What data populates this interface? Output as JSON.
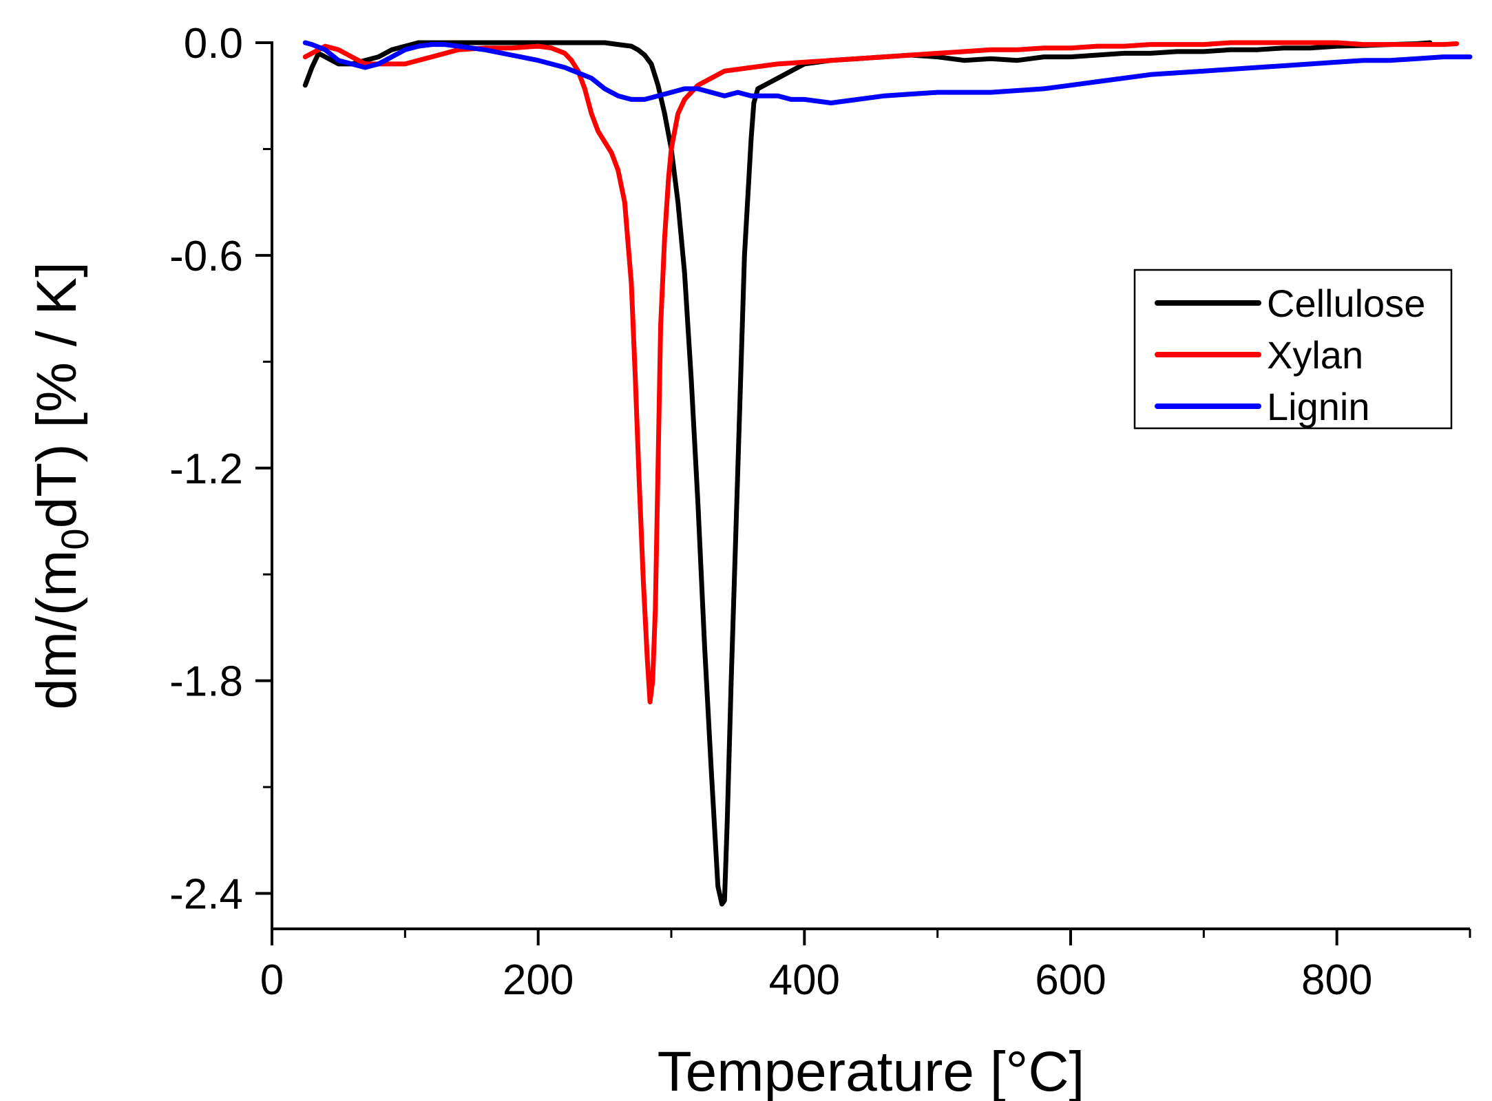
{
  "chart_data": {
    "type": "line",
    "title": "",
    "xlabel": "Temperature [°C]",
    "ylabel_main": "dm/(m",
    "ylabel_sub": "0",
    "ylabel_tail": "dT) [% / K]",
    "xlim": [
      0,
      900
    ],
    "ylim": [
      -2.5,
      0.0
    ],
    "x_ticks": [
      0,
      200,
      400,
      600,
      800
    ],
    "x_tick_labels": [
      "0",
      "200",
      "400",
      "600",
      "800"
    ],
    "x_minor_ticks": [
      100,
      300,
      500,
      700,
      900
    ],
    "y_ticks": [
      0.0,
      -0.6,
      -1.2,
      -1.8,
      -2.4
    ],
    "y_tick_labels": [
      "0.0",
      "-0.6",
      "-1.2",
      "-1.8",
      "-2.4"
    ],
    "y_minor_ticks": [
      -0.3,
      -0.9,
      -1.5,
      -2.1
    ],
    "grid": false,
    "legend_position": "upper-right",
    "series": [
      {
        "name": "Cellulose",
        "color": "#000000",
        "x": [
          25,
          30,
          35,
          40,
          50,
          60,
          70,
          80,
          90,
          100,
          110,
          120,
          140,
          160,
          180,
          200,
          220,
          240,
          250,
          260,
          270,
          275,
          280,
          285,
          290,
          295,
          300,
          305,
          310,
          315,
          320,
          325,
          330,
          335,
          338,
          340,
          342,
          345,
          350,
          355,
          360,
          362,
          365,
          370,
          380,
          390,
          400,
          420,
          440,
          460,
          480,
          500,
          520,
          540,
          560,
          580,
          600,
          620,
          640,
          660,
          680,
          700,
          720,
          740,
          760,
          780,
          800,
          820,
          840,
          860,
          870
        ],
        "y": [
          -0.12,
          -0.07,
          -0.03,
          -0.04,
          -0.06,
          -0.06,
          -0.05,
          -0.04,
          -0.02,
          -0.01,
          0.0,
          0.0,
          0.0,
          0.0,
          0.0,
          0.0,
          0.0,
          0.0,
          0.0,
          -0.005,
          -0.01,
          -0.02,
          -0.035,
          -0.06,
          -0.12,
          -0.2,
          -0.3,
          -0.45,
          -0.65,
          -0.95,
          -1.3,
          -1.7,
          -2.05,
          -2.38,
          -2.43,
          -2.42,
          -2.2,
          -1.8,
          -1.2,
          -0.6,
          -0.27,
          -0.17,
          -0.13,
          -0.12,
          -0.1,
          -0.08,
          -0.06,
          -0.05,
          -0.045,
          -0.04,
          -0.035,
          -0.04,
          -0.05,
          -0.045,
          -0.05,
          -0.04,
          -0.04,
          -0.035,
          -0.03,
          -0.03,
          -0.025,
          -0.025,
          -0.02,
          -0.02,
          -0.015,
          -0.015,
          -0.01,
          -0.008,
          -0.005,
          -0.003,
          0.0
        ]
      },
      {
        "name": "Xylan",
        "color": "#ff0000",
        "x": [
          25,
          30,
          40,
          50,
          60,
          70,
          80,
          90,
          100,
          120,
          140,
          160,
          180,
          200,
          210,
          220,
          225,
          230,
          235,
          240,
          245,
          250,
          255,
          260,
          265,
          270,
          273,
          276,
          279,
          282,
          284,
          286,
          288,
          290,
          292,
          295,
          298,
          300,
          305,
          310,
          320,
          330,
          340,
          350,
          360,
          380,
          400,
          420,
          440,
          460,
          480,
          500,
          520,
          540,
          560,
          580,
          600,
          620,
          640,
          660,
          680,
          700,
          720,
          740,
          760,
          780,
          800,
          820,
          840,
          860,
          880,
          890
        ],
        "y": [
          -0.04,
          -0.03,
          -0.01,
          -0.02,
          -0.04,
          -0.06,
          -0.06,
          -0.06,
          -0.06,
          -0.04,
          -0.02,
          -0.015,
          -0.015,
          -0.01,
          -0.015,
          -0.03,
          -0.05,
          -0.08,
          -0.13,
          -0.2,
          -0.25,
          -0.28,
          -0.31,
          -0.36,
          -0.45,
          -0.68,
          -0.95,
          -1.25,
          -1.52,
          -1.74,
          -1.86,
          -1.8,
          -1.6,
          -1.2,
          -0.8,
          -0.55,
          -0.38,
          -0.3,
          -0.2,
          -0.16,
          -0.12,
          -0.1,
          -0.08,
          -0.075,
          -0.07,
          -0.06,
          -0.055,
          -0.05,
          -0.045,
          -0.04,
          -0.035,
          -0.03,
          -0.025,
          -0.02,
          -0.02,
          -0.015,
          -0.015,
          -0.01,
          -0.01,
          -0.005,
          -0.005,
          -0.005,
          0.0,
          0.0,
          0.0,
          0.0,
          0.0,
          -0.005,
          -0.005,
          -0.005,
          -0.005,
          -0.003
        ]
      },
      {
        "name": "Lignin",
        "color": "#0000ff",
        "x": [
          25,
          30,
          40,
          50,
          60,
          70,
          80,
          90,
          100,
          110,
          120,
          130,
          140,
          160,
          180,
          200,
          220,
          240,
          250,
          260,
          270,
          280,
          290,
          300,
          310,
          320,
          330,
          340,
          350,
          360,
          370,
          380,
          390,
          400,
          420,
          440,
          460,
          480,
          500,
          520,
          540,
          560,
          580,
          600,
          620,
          640,
          660,
          680,
          700,
          720,
          740,
          760,
          780,
          800,
          820,
          840,
          860,
          880,
          900
        ],
        "y": [
          0.0,
          -0.005,
          -0.02,
          -0.05,
          -0.06,
          -0.07,
          -0.06,
          -0.04,
          -0.02,
          -0.01,
          -0.005,
          -0.005,
          -0.01,
          -0.02,
          -0.035,
          -0.05,
          -0.07,
          -0.1,
          -0.13,
          -0.15,
          -0.16,
          -0.16,
          -0.15,
          -0.14,
          -0.13,
          -0.13,
          -0.14,
          -0.15,
          -0.14,
          -0.15,
          -0.15,
          -0.15,
          -0.16,
          -0.16,
          -0.17,
          -0.16,
          -0.15,
          -0.145,
          -0.14,
          -0.14,
          -0.14,
          -0.135,
          -0.13,
          -0.12,
          -0.11,
          -0.1,
          -0.09,
          -0.085,
          -0.08,
          -0.075,
          -0.07,
          -0.065,
          -0.06,
          -0.055,
          -0.05,
          -0.05,
          -0.045,
          -0.04,
          -0.04
        ]
      }
    ]
  }
}
